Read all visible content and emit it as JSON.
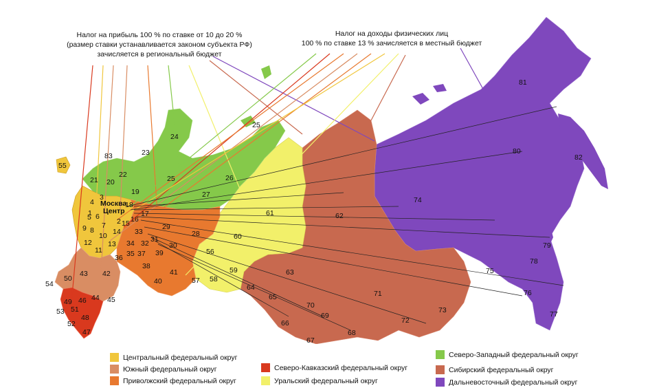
{
  "annotations": {
    "left": [
      "Налог на прибыль 100 % по ставке от 10 до 20 %",
      "(размер ставки устанавливается законом субъекта РФ)",
      "зачисляется в региональный бюджет"
    ],
    "right": [
      "Налог на доходы физических лиц",
      "100 % по ставке 13 % зачисляется в местный бюджет"
    ]
  },
  "moscow_label": [
    "Москва",
    "Центр"
  ],
  "districts": {
    "central": {
      "label": "Центральный федеральный округ",
      "color": "#f0c63c"
    },
    "south": {
      "label": "Южный федеральный округ",
      "color": "#d98d63"
    },
    "volga": {
      "label": "Приволжский федеральный округ",
      "color": "#e8792f"
    },
    "caucasus": {
      "label": "Северо-Кавказский федеральный округ",
      "color": "#d9391e"
    },
    "ural": {
      "label": "Уральский федеральный округ",
      "color": "#f2f06a"
    },
    "northwest": {
      "label": "Северо-Западный федеральный округ",
      "color": "#85c94a"
    },
    "siberia": {
      "label": "Сибирский федеральный округ",
      "color": "#c8694f"
    },
    "fareast": {
      "label": "Дальневосточный федеральный округ",
      "color": "#7f48bd"
    }
  },
  "region_numbers": [
    "1",
    "2",
    "3",
    "4",
    "5",
    "6",
    "7",
    "8",
    "9",
    "10",
    "11",
    "12",
    "13",
    "14",
    "15",
    "16",
    "17",
    "18",
    "19",
    "20",
    "21",
    "22",
    "23",
    "24",
    "25",
    "26",
    "27",
    "28",
    "29",
    "30",
    "31",
    "32",
    "33",
    "34",
    "35",
    "36",
    "37",
    "38",
    "39",
    "40",
    "41",
    "42",
    "43",
    "44",
    "45",
    "46",
    "47",
    "48",
    "49",
    "50",
    "51",
    "52",
    "53",
    "54",
    "55",
    "56",
    "57",
    "58",
    "59",
    "60",
    "61",
    "62",
    "63",
    "64",
    "65",
    "66",
    "67",
    "68",
    "69",
    "70",
    "71",
    "72",
    "73",
    "74",
    "75",
    "76",
    "77",
    "78",
    "79",
    "80",
    "81",
    "82",
    "83"
  ]
}
